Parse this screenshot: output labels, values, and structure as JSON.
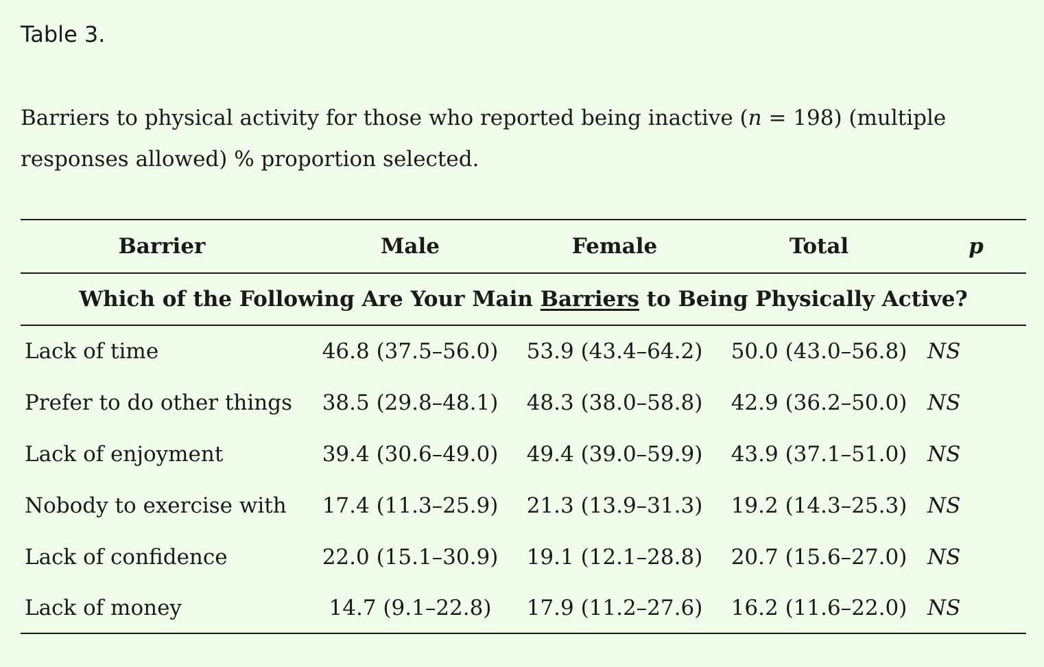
{
  "table_label": "Table 3.",
  "caption": {
    "part1": "Barriers to physical activity for those who reported being inactive (",
    "n_symbol": "n",
    "part2": " = 198) (multiple responses allowed) % proportion selected."
  },
  "columns": [
    "Barrier",
    "Male",
    "Female",
    "Total",
    "p"
  ],
  "section": {
    "prefix": "Which of the Following Are Your Main ",
    "underlined": "Barriers",
    "suffix": " to Being Physically Active?"
  },
  "rows": [
    {
      "barrier": "Lack of time",
      "male": "46.8 (37.5–56.0)",
      "female": "53.9 (43.4–64.2)",
      "total": "50.0 (43.0–56.8)",
      "p": "NS"
    },
    {
      "barrier": "Prefer to do other things",
      "male": "38.5 (29.8–48.1)",
      "female": "48.3 (38.0–58.8)",
      "total": "42.9 (36.2–50.0)",
      "p": "NS"
    },
    {
      "barrier": "Lack of enjoyment",
      "male": "39.4 (30.6–49.0)",
      "female": "49.4 (39.0–59.9)",
      "total": "43.9 (37.1–51.0)",
      "p": "NS"
    },
    {
      "barrier": "Nobody to exercise with",
      "male": "17.4 (11.3–25.9)",
      "female": "21.3 (13.9–31.3)",
      "total": "19.2 (14.3–25.3)",
      "p": "NS"
    },
    {
      "barrier": "Lack of confidence",
      "male": "22.0 (15.1–30.9)",
      "female": "19.1 (12.1–28.8)",
      "total": "20.7 (15.6–27.0)",
      "p": "NS"
    },
    {
      "barrier": "Lack of money",
      "male": "14.7 (9.1–22.8)",
      "female": "17.9 (11.2–27.6)",
      "total": "16.2 (11.6–22.0)",
      "p": "NS"
    }
  ],
  "colors": {
    "background": "#f0fdea",
    "text": "#1a1a1a"
  }
}
